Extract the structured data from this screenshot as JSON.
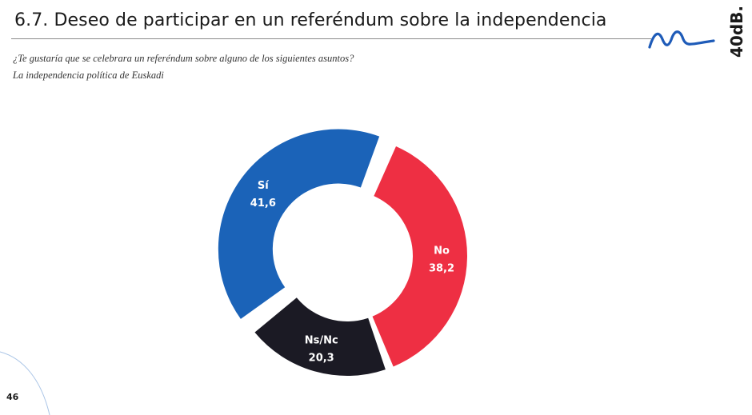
{
  "header": {
    "title": "6.7. Deseo de participar en un referéndum sobre la independencia",
    "brand": "40dB.",
    "wave_color": "#1e5bb8"
  },
  "question": "¿Te gustaría que se celebrara un referéndum sobre alguno de los siguientes asuntos?",
  "subtitle": "La independencia política de Euskadi",
  "footer": {
    "page_number": "46"
  },
  "chart_data": {
    "type": "pie",
    "variant": "donut",
    "title": "La independencia política de Euskadi",
    "categories": [
      "Sí",
      "No",
      "Ns/Nc"
    ],
    "values": [
      41.6,
      38.2,
      20.3
    ],
    "value_labels": [
      "41,6",
      "38,2",
      "20,3"
    ],
    "colors": [
      "#1b63b8",
      "#ee2f43",
      "#1b1a24"
    ],
    "exploded": [
      true,
      false,
      false
    ],
    "legend": "none"
  }
}
